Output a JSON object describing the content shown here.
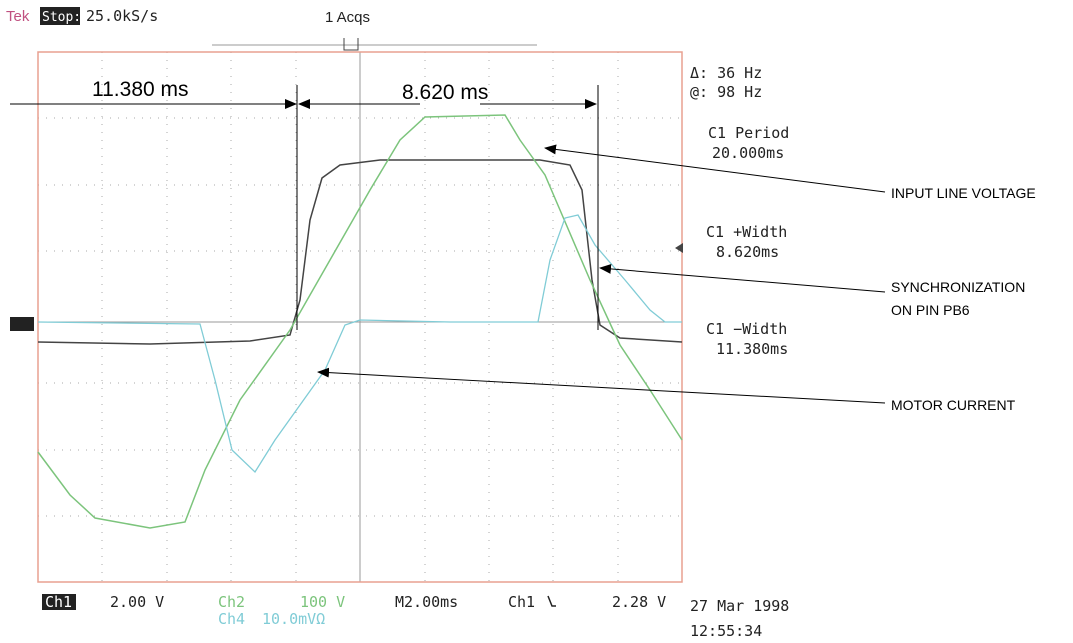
{
  "header": {
    "brand": "Tek",
    "state": "Stop:",
    "rate": "25.0kS/s",
    "acqs": "1 Acqs"
  },
  "readouts": {
    "delta": "Δ: 36 Hz",
    "at": "@: 98 Hz",
    "period_label": "C1 Period",
    "period_value": "20.000ms",
    "pwidth_label": "C1 +Width",
    "pwidth_value": "8.620ms",
    "nwidth_label": "C1 −Width",
    "nwidth_value": "11.380ms"
  },
  "footer": {
    "ch1": "Ch1",
    "ch1_scale": "2.00 V",
    "ch2": "Ch2",
    "ch2_scale": "100 V",
    "ch4": "Ch4",
    "ch4_scale": "10.0mVΩ",
    "timebase": "M2.00ms",
    "trig_ch": "Ch1",
    "trig_level": "2.28 V",
    "date": "27 Mar 1998",
    "time": "12:55:34"
  },
  "annotations": {
    "low_time": "11.380 ms",
    "high_time": "8.620 ms",
    "input": "INPUT LINE VOLTAGE",
    "sync_1": "SYNCHRONIZATION",
    "sync_2": "ON PIN PB6",
    "motor": "MOTOR CURRENT"
  }
}
